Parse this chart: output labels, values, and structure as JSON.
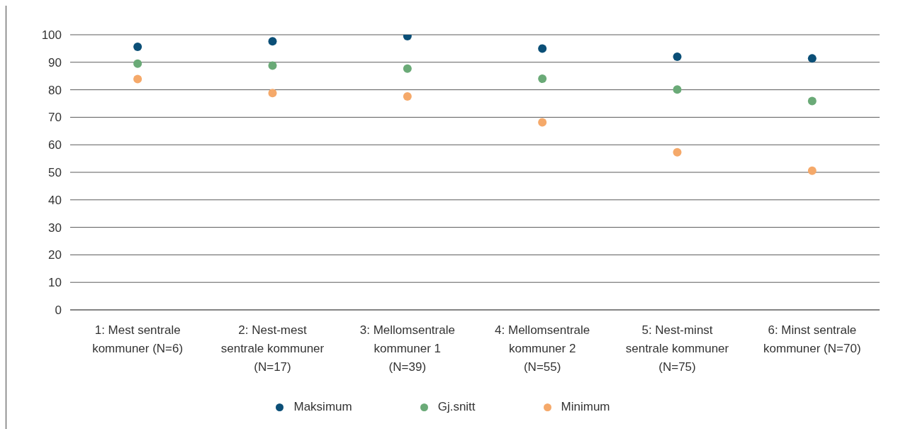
{
  "chart_data": {
    "type": "scatter",
    "categories": [
      "1: Mest sentrale kommuner (N=6)",
      "2: Nest-mest sentrale kommuner (N=17)",
      "3: Mellomsentrale kommuner 1 (N=39)",
      "4: Mellomsentrale kommuner 2 (N=55)",
      "5: Nest-minst sentrale kommuner (N=75)",
      "6: Minst sentrale kommuner (N=70)"
    ],
    "series": [
      {
        "name": "Maksimum",
        "color": "#0b4f77",
        "values": [
          95.6,
          97.6,
          99.5,
          95.0,
          92.0,
          91.4
        ]
      },
      {
        "name": "Gj.snitt",
        "color": "#6aaa77",
        "values": [
          89.5,
          88.8,
          87.7,
          84.0,
          80.1,
          75.9
        ]
      },
      {
        "name": "Minimum",
        "color": "#f5a96a",
        "values": [
          83.9,
          78.8,
          77.6,
          68.2,
          57.3,
          50.6
        ]
      }
    ],
    "ylim": [
      0,
      100
    ],
    "yticks": [
      0,
      10,
      20,
      30,
      40,
      50,
      60,
      70,
      80,
      90,
      100
    ],
    "grid": "y",
    "legend": "bottom",
    "marker": "circle"
  }
}
